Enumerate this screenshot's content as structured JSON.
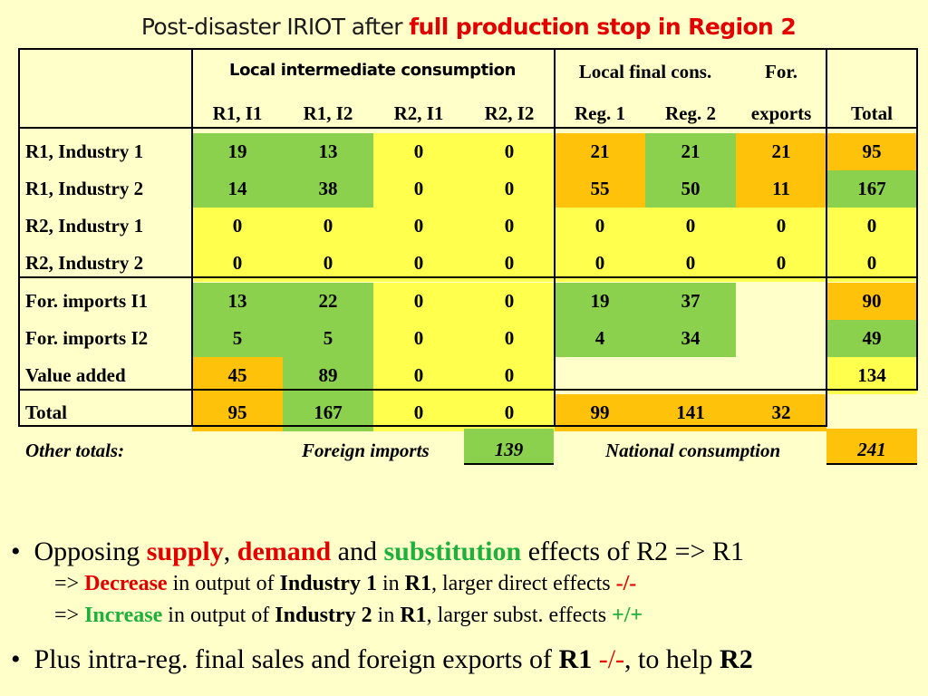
{
  "title": {
    "prefix": "Post-disaster IRIOT after ",
    "highlight": "full production stop in Region 2"
  },
  "header": {
    "group1": "Local intermediate consumption",
    "group2": "Local final cons.",
    "group3": "For.",
    "cols": [
      "R1, I1",
      "R1, I2",
      "R2, I1",
      "R2, I2",
      "Reg. 1",
      "Reg. 2",
      "exports",
      "Total"
    ]
  },
  "rows": [
    {
      "label": "R1, Industry 1",
      "values": [
        "19",
        "13",
        "0",
        "0",
        "21",
        "21",
        "21",
        "95"
      ]
    },
    {
      "label": "R1, Industry 2",
      "values": [
        "14",
        "38",
        "0",
        "0",
        "55",
        "50",
        "11",
        "167"
      ]
    },
    {
      "label": "R2, Industry 1",
      "values": [
        "0",
        "0",
        "0",
        "0",
        "0",
        "0",
        "0",
        "0"
      ]
    },
    {
      "label": "R2, Industry 2",
      "values": [
        "0",
        "0",
        "0",
        "0",
        "0",
        "0",
        "0",
        "0"
      ]
    },
    {
      "label": "For. imports I1",
      "values": [
        "13",
        "22",
        "0",
        "0",
        "19",
        "37",
        "",
        "90"
      ]
    },
    {
      "label": "For. imports I2",
      "values": [
        "5",
        "5",
        "0",
        "0",
        "4",
        "34",
        "",
        "49"
      ]
    },
    {
      "label": "Value added",
      "values": [
        "45",
        "89",
        "0",
        "0",
        "",
        "",
        "",
        "134"
      ]
    },
    {
      "label": "Total",
      "values": [
        "95",
        "167",
        "0",
        "0",
        "99",
        "141",
        "32",
        ""
      ]
    }
  ],
  "other_totals": {
    "label": "Other totals:",
    "foreign_imports_label": "Foreign imports",
    "foreign_imports_value": "139",
    "national_consumption_label": "National consumption",
    "national_consumption_value": "241"
  },
  "colors": {
    "green": "#8cd14d",
    "orange": "#ffc20a",
    "yellow": "#ffff4d",
    "background": "#ffffc9",
    "red": "#e30000",
    "text_green": "#1db13b"
  },
  "bullets": {
    "b1": {
      "t1": "Opposing ",
      "supply": "supply",
      "comma": ", ",
      "demand": "demand",
      "and": " and ",
      "substitution": "substitution",
      "rest": " effects of R2 => R1"
    },
    "s1": {
      "arrow": "=> ",
      "kw": "Decrease",
      "t1": " in output of ",
      "industry": "Industry 1",
      "t2": " in ",
      "region": "R1",
      "t3": ", larger direct effects ",
      "sign": "-/-"
    },
    "s2": {
      "arrow": "=> ",
      "kw": "Increase",
      "t1": " in output of ",
      "industry": "Industry 2",
      "t2": " in ",
      "region": "R1",
      "t3": ", larger subst. effects ",
      "sign": "+/+"
    },
    "b2": {
      "t1": "Plus intra-reg. final sales and foreign exports of ",
      "region": "R1",
      "sign": "-/-",
      "t2": ", to help ",
      "region2": "R2"
    }
  }
}
